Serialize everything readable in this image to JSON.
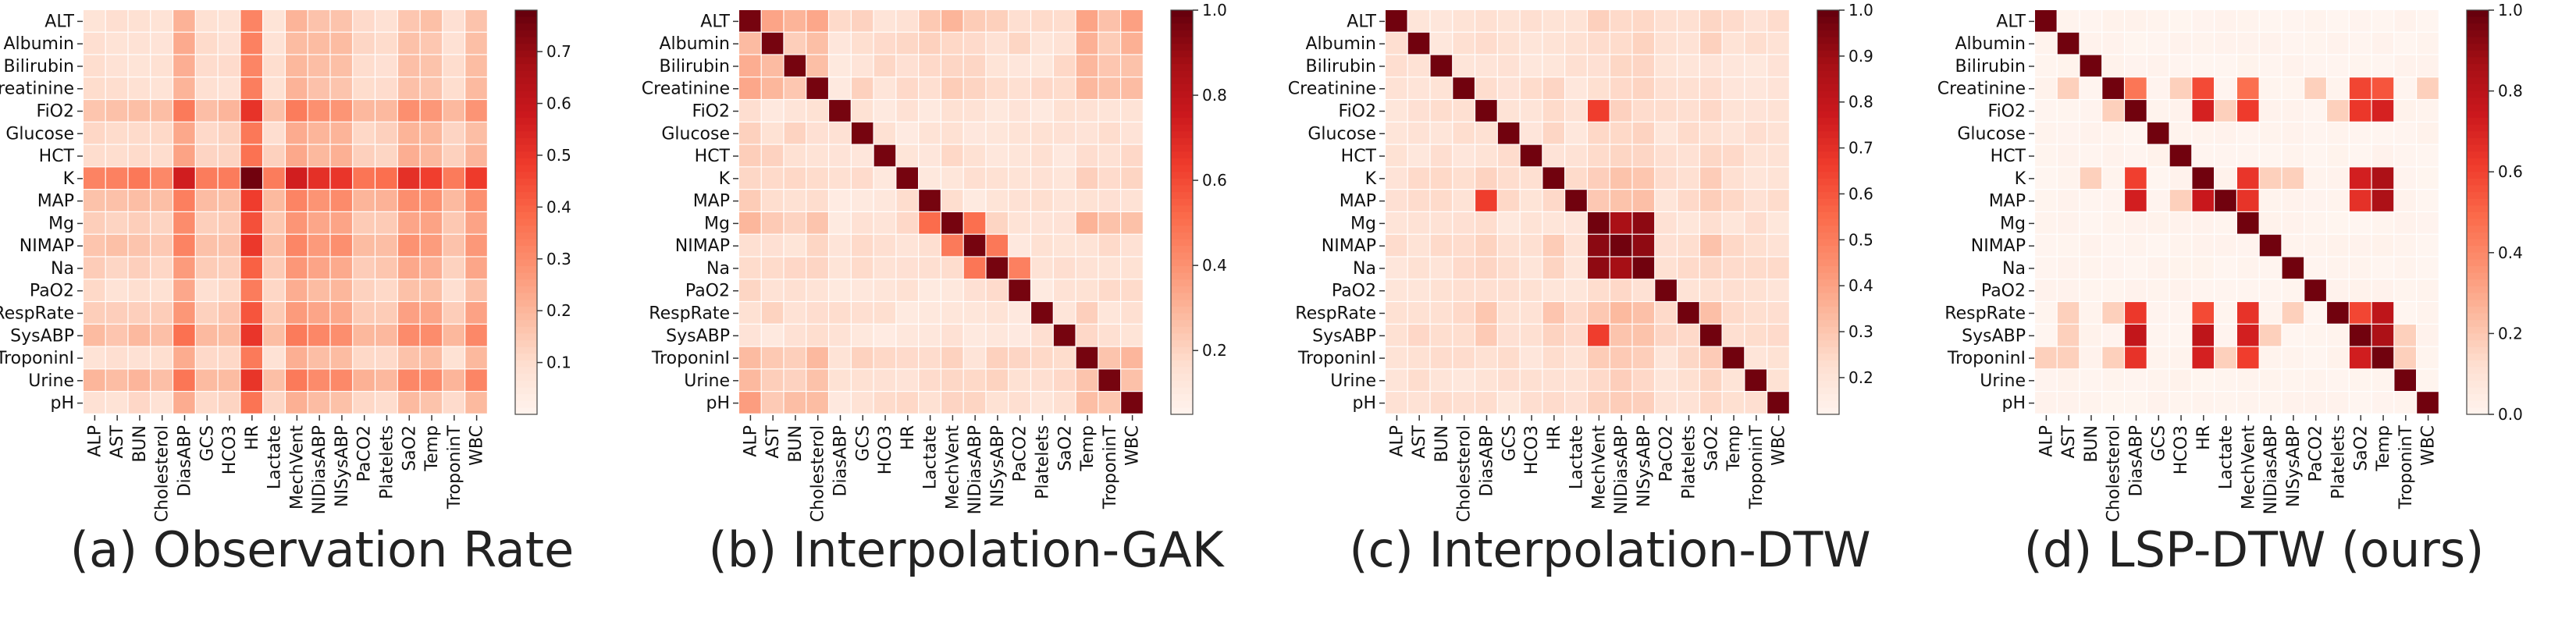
{
  "chart_data": [
    {
      "type": "heatmap",
      "caption": "(a) Observation Rate",
      "y_labels": [
        "ALT",
        "Albumin",
        "Bilirubin",
        "Creatinine",
        "FiO2",
        "Glucose",
        "HCT",
        "K",
        "MAP",
        "Mg",
        "NIMAP",
        "Na",
        "PaO2",
        "RespRate",
        "SysABP",
        "TroponinI",
        "Urine",
        "pH"
      ],
      "x_labels": [
        "ALP",
        "AST",
        "BUN",
        "Cholesterol",
        "DiasABP",
        "GCS",
        "HCO3",
        "HR",
        "Lactate",
        "MechVent",
        "NIDiasABP",
        "NISysABP",
        "PaCO2",
        "Platelets",
        "SaO2",
        "Temp",
        "TroponinT",
        "WBC"
      ],
      "colorbar_ticks": [
        "0.1",
        "0.2",
        "0.3",
        "0.4",
        "0.5",
        "0.6",
        "0.7"
      ],
      "colorbar_range": [
        0.0,
        0.78
      ]
    },
    {
      "type": "heatmap",
      "caption": "(b) Interpolation-GAK",
      "y_labels": [
        "ALT",
        "Albumin",
        "Bilirubin",
        "Creatinine",
        "FiO2",
        "Glucose",
        "HCT",
        "K",
        "MAP",
        "Mg",
        "NIMAP",
        "Na",
        "PaO2",
        "RespRate",
        "SysABP",
        "TroponinI",
        "Urine",
        "pH"
      ],
      "x_labels": [
        "ALP",
        "AST",
        "BUN",
        "Cholesterol",
        "DiasABP",
        "GCS",
        "HCO3",
        "HR",
        "Lactate",
        "MechVent",
        "NIDiasABP",
        "NISysABP",
        "PaCO2",
        "Platelets",
        "SaO2",
        "Temp",
        "TroponinT",
        "WBC"
      ],
      "colorbar_ticks": [
        "0.2",
        "0.4",
        "0.6",
        "0.8",
        "1.0"
      ],
      "colorbar_range": [
        0.05,
        1.0
      ]
    },
    {
      "type": "heatmap",
      "caption": "(c) Interpolation-DTW",
      "y_labels": [
        "ALT",
        "Albumin",
        "Bilirubin",
        "Creatinine",
        "FiO2",
        "Glucose",
        "HCT",
        "K",
        "MAP",
        "Mg",
        "NIMAP",
        "Na",
        "PaO2",
        "RespRate",
        "SysABP",
        "TroponinI",
        "Urine",
        "pH"
      ],
      "x_labels": [
        "ALP",
        "AST",
        "BUN",
        "Cholesterol",
        "DiasABP",
        "GCS",
        "HCO3",
        "HR",
        "Lactate",
        "MechVent",
        "NIDiasABP",
        "NISysABP",
        "PaCO2",
        "Platelets",
        "SaO2",
        "Temp",
        "TroponinT",
        "WBC"
      ],
      "colorbar_ticks": [
        "0.2",
        "0.3",
        "0.4",
        "0.5",
        "0.6",
        "0.7",
        "0.8",
        "0.9",
        "1.0"
      ],
      "colorbar_range": [
        0.12,
        1.0
      ]
    },
    {
      "type": "heatmap",
      "caption": "(d) LSP-DTW (ours)",
      "y_labels": [
        "ALT",
        "Albumin",
        "Bilirubin",
        "Creatinine",
        "FiO2",
        "Glucose",
        "HCT",
        "K",
        "MAP",
        "Mg",
        "NIMAP",
        "Na",
        "PaO2",
        "RespRate",
        "SysABP",
        "TroponinI",
        "Urine",
        "pH"
      ],
      "x_labels": [
        "ALP",
        "AST",
        "BUN",
        "Cholesterol",
        "DiasABP",
        "GCS",
        "HCO3",
        "HR",
        "Lactate",
        "MechVent",
        "NIDiasABP",
        "NISysABP",
        "PaCO2",
        "Platelets",
        "SaO2",
        "Temp",
        "TroponinT",
        "WBC"
      ],
      "colorbar_ticks": [
        "0.0",
        "0.2",
        "0.4",
        "0.6",
        "0.8",
        "1.0"
      ],
      "colorbar_range": [
        0.0,
        1.0
      ]
    }
  ]
}
